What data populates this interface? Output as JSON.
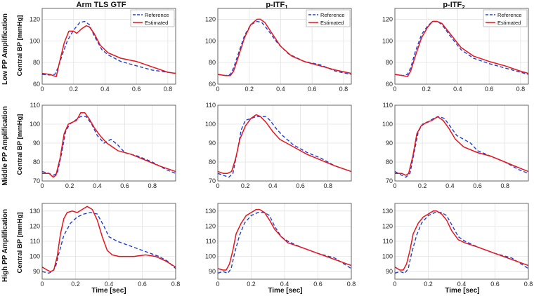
{
  "row_labels": [
    "Low PP Amplification",
    "Middle PP Amplification",
    "High PP Amplification"
  ],
  "col_titles": [
    {
      "main": "Arm TLS GTF",
      "sub": ""
    },
    {
      "main": "p-ITF",
      "sub": "1"
    },
    {
      "main": "p-ITF",
      "sub": "2"
    }
  ],
  "ylabel": "Central BP [mmHg]",
  "xlabel": "Time [sec]",
  "legend": {
    "reference": "Reference",
    "estimated": "Estimated"
  },
  "colors": {
    "reference": "#1f3fd6",
    "estimated": "#e8141b",
    "grid": "#e3e3e3",
    "axis": "#444444"
  },
  "chart_data": [
    {
      "type": "line",
      "row": 0,
      "col": 0,
      "title": "Arm TLS GTF",
      "xlim": [
        0,
        0.85
      ],
      "ylim": [
        60,
        130
      ],
      "xticks": [
        0,
        0.2,
        0.4,
        0.6,
        0.8
      ],
      "yticks": [
        60,
        80,
        100,
        120
      ],
      "series": [
        {
          "name": "Reference",
          "style": "dashed",
          "x": [
            0,
            0.05,
            0.08,
            0.1,
            0.13,
            0.16,
            0.2,
            0.24,
            0.27,
            0.3,
            0.33,
            0.38,
            0.42,
            0.5,
            0.6,
            0.7,
            0.8,
            0.85
          ],
          "y": [
            69,
            68.5,
            69,
            75,
            88,
            100,
            110,
            117,
            118,
            115,
            105,
            92,
            87,
            81,
            77,
            73,
            71,
            70
          ]
        },
        {
          "name": "Estimated",
          "style": "solid",
          "x": [
            0,
            0.05,
            0.07,
            0.09,
            0.11,
            0.14,
            0.17,
            0.2,
            0.22,
            0.25,
            0.28,
            0.3,
            0.33,
            0.37,
            0.42,
            0.5,
            0.6,
            0.7,
            0.8,
            0.85
          ],
          "y": [
            70,
            69,
            68,
            67,
            80,
            98,
            109,
            109,
            107,
            111,
            114,
            113,
            107,
            96,
            89,
            84,
            81,
            76,
            71,
            70
          ]
        }
      ]
    },
    {
      "type": "line",
      "row": 0,
      "col": 1,
      "title": "p-ITF1",
      "xlim": [
        0,
        0.85
      ],
      "ylim": [
        60,
        130
      ],
      "xticks": [
        0,
        0.2,
        0.4,
        0.6,
        0.8
      ],
      "yticks": [
        60,
        80,
        100,
        120
      ],
      "series": [
        {
          "name": "Reference",
          "style": "dashed",
          "x": [
            0,
            0.05,
            0.08,
            0.1,
            0.13,
            0.17,
            0.21,
            0.25,
            0.28,
            0.32,
            0.38,
            0.45,
            0.55,
            0.65,
            0.75,
            0.85
          ],
          "y": [
            69,
            68,
            69,
            75,
            88,
            105,
            115,
            118,
            117,
            110,
            98,
            88,
            81,
            78,
            72,
            69
          ]
        },
        {
          "name": "Estimated",
          "style": "solid",
          "x": [
            0,
            0.05,
            0.08,
            0.1,
            0.13,
            0.17,
            0.21,
            0.25,
            0.27,
            0.3,
            0.34,
            0.4,
            0.47,
            0.55,
            0.65,
            0.75,
            0.85
          ],
          "y": [
            69,
            68,
            68,
            72,
            85,
            103,
            115,
            120,
            120,
            117,
            108,
            95,
            86,
            81,
            77,
            73,
            70
          ]
        }
      ]
    },
    {
      "type": "line",
      "row": 0,
      "col": 2,
      "title": "p-ITF2",
      "xlim": [
        0,
        0.85
      ],
      "ylim": [
        60,
        130
      ],
      "xticks": [
        0,
        0.2,
        0.4,
        0.6,
        0.8
      ],
      "yticks": [
        60,
        80,
        100,
        120
      ],
      "series": [
        {
          "name": "Reference",
          "style": "dashed",
          "x": [
            0,
            0.05,
            0.08,
            0.1,
            0.13,
            0.17,
            0.21,
            0.24,
            0.27,
            0.3,
            0.35,
            0.42,
            0.5,
            0.6,
            0.7,
            0.8,
            0.85
          ],
          "y": [
            69,
            68,
            69,
            75,
            90,
            106,
            114,
            118,
            118,
            115,
            105,
            92,
            84,
            79,
            75,
            71,
            69
          ]
        },
        {
          "name": "Estimated",
          "style": "solid",
          "x": [
            0,
            0.05,
            0.08,
            0.1,
            0.13,
            0.17,
            0.21,
            0.24,
            0.27,
            0.3,
            0.35,
            0.42,
            0.5,
            0.6,
            0.7,
            0.8,
            0.85
          ],
          "y": [
            69,
            68,
            67,
            72,
            86,
            103,
            113,
            118,
            118,
            116,
            107,
            94,
            86,
            81,
            77,
            72,
            70
          ]
        }
      ]
    },
    {
      "type": "line",
      "row": 1,
      "col": 0,
      "title": "Arm TLS GTF",
      "xlim": [
        0,
        0.97
      ],
      "ylim": [
        70,
        110
      ],
      "xticks": [
        0,
        0.2,
        0.4,
        0.6,
        0.8
      ],
      "yticks": [
        70,
        80,
        90,
        100,
        110
      ],
      "series": [
        {
          "name": "Reference",
          "style": "dashed",
          "x": [
            0,
            0.05,
            0.08,
            0.11,
            0.14,
            0.17,
            0.2,
            0.24,
            0.28,
            0.32,
            0.36,
            0.4,
            0.45,
            0.5,
            0.55,
            0.6,
            0.7,
            0.8,
            0.9,
            0.97
          ],
          "y": [
            75,
            74,
            73,
            74,
            84,
            96,
            100,
            102,
            104,
            104,
            100,
            94,
            90,
            92,
            89,
            85,
            83,
            80,
            76,
            74
          ]
        },
        {
          "name": "Estimated",
          "style": "solid",
          "x": [
            0,
            0.05,
            0.08,
            0.1,
            0.13,
            0.16,
            0.19,
            0.22,
            0.25,
            0.28,
            0.31,
            0.34,
            0.38,
            0.42,
            0.47,
            0.55,
            0.65,
            0.75,
            0.85,
            0.97
          ],
          "y": [
            74,
            74,
            72,
            73,
            82,
            95,
            100,
            101,
            102,
            106,
            106,
            103,
            98,
            94,
            90,
            86,
            84,
            81,
            78,
            75
          ]
        }
      ]
    },
    {
      "type": "line",
      "row": 1,
      "col": 1,
      "title": "p-ITF1",
      "xlim": [
        0,
        0.97
      ],
      "ylim": [
        70,
        110
      ],
      "xticks": [
        0,
        0.2,
        0.4,
        0.6,
        0.8
      ],
      "yticks": [
        70,
        80,
        90,
        100,
        110
      ],
      "series": [
        {
          "name": "Reference",
          "style": "dashed",
          "x": [
            0,
            0.04,
            0.08,
            0.11,
            0.14,
            0.17,
            0.2,
            0.24,
            0.28,
            0.32,
            0.35,
            0.38,
            0.42,
            0.47,
            0.55,
            0.65,
            0.75,
            0.85,
            0.97
          ],
          "y": [
            74,
            73,
            72,
            74,
            85,
            97,
            102,
            103,
            104,
            104,
            104,
            102,
            98,
            94,
            89,
            85,
            82,
            78,
            75
          ]
        },
        {
          "name": "Estimated",
          "style": "solid",
          "x": [
            0,
            0.04,
            0.07,
            0.1,
            0.13,
            0.16,
            0.2,
            0.24,
            0.28,
            0.31,
            0.35,
            0.4,
            0.45,
            0.55,
            0.65,
            0.75,
            0.85,
            0.97
          ],
          "y": [
            75,
            74,
            74,
            75,
            82,
            92,
            99,
            103,
            105,
            104,
            101,
            96,
            92,
            88,
            84,
            81,
            78,
            75
          ]
        }
      ]
    },
    {
      "type": "line",
      "row": 1,
      "col": 2,
      "title": "p-ITF2",
      "xlim": [
        0,
        0.97
      ],
      "ylim": [
        70,
        110
      ],
      "xticks": [
        0,
        0.2,
        0.4,
        0.6,
        0.8
      ],
      "yticks": [
        70,
        80,
        90,
        100,
        110
      ],
      "series": [
        {
          "name": "Reference",
          "style": "dashed",
          "x": [
            0,
            0.05,
            0.08,
            0.11,
            0.14,
            0.17,
            0.2,
            0.24,
            0.28,
            0.32,
            0.36,
            0.4,
            0.45,
            0.5,
            0.55,
            0.6,
            0.7,
            0.8,
            0.9,
            0.97
          ],
          "y": [
            75,
            73,
            72,
            74,
            85,
            96,
            100,
            101,
            103,
            104,
            103,
            99,
            94,
            92,
            90,
            86,
            83,
            80,
            76,
            74
          ]
        },
        {
          "name": "Estimated",
          "style": "solid",
          "x": [
            0,
            0.05,
            0.08,
            0.1,
            0.13,
            0.16,
            0.19,
            0.23,
            0.27,
            0.31,
            0.35,
            0.39,
            0.44,
            0.5,
            0.6,
            0.7,
            0.8,
            0.9,
            0.97
          ],
          "y": [
            74,
            74,
            73,
            74,
            83,
            95,
            99,
            101,
            102,
            104,
            102,
            98,
            92,
            88,
            85,
            83,
            80,
            77,
            75
          ]
        }
      ]
    },
    {
      "type": "line",
      "row": 2,
      "col": 0,
      "title": "Arm TLS GTF",
      "xlim": [
        0,
        0.8
      ],
      "ylim": [
        85,
        135
      ],
      "xticks": [
        0,
        0.2,
        0.4,
        0.6,
        0.8
      ],
      "yticks": [
        90,
        100,
        110,
        120,
        130
      ],
      "series": [
        {
          "name": "Reference",
          "style": "dashed",
          "x": [
            0,
            0.04,
            0.06,
            0.08,
            0.1,
            0.13,
            0.17,
            0.21,
            0.25,
            0.29,
            0.33,
            0.37,
            0.4,
            0.45,
            0.5,
            0.55,
            0.6,
            0.65,
            0.7,
            0.75,
            0.8
          ],
          "y": [
            90,
            89,
            90,
            93,
            102,
            114,
            122,
            126,
            128,
            129,
            128,
            120,
            113,
            110,
            108,
            106,
            104,
            102,
            100,
            97,
            92
          ]
        },
        {
          "name": "Estimated",
          "style": "solid",
          "x": [
            0,
            0.03,
            0.05,
            0.07,
            0.09,
            0.11,
            0.13,
            0.15,
            0.18,
            0.21,
            0.24,
            0.27,
            0.3,
            0.33,
            0.36,
            0.39,
            0.42,
            0.46,
            0.5,
            0.55,
            0.62,
            0.68,
            0.74,
            0.8
          ],
          "y": [
            93,
            91,
            90,
            91,
            100,
            115,
            125,
            129,
            130,
            129,
            131,
            133,
            131,
            124,
            113,
            104,
            101,
            100,
            100,
            100,
            101,
            100,
            97,
            93
          ]
        }
      ]
    },
    {
      "type": "line",
      "row": 2,
      "col": 1,
      "title": "p-ITF1",
      "xlim": [
        0,
        0.8
      ],
      "ylim": [
        85,
        135
      ],
      "xticks": [
        0,
        0.2,
        0.4,
        0.6,
        0.8
      ],
      "yticks": [
        90,
        100,
        110,
        120,
        130
      ],
      "series": [
        {
          "name": "Reference",
          "style": "dashed",
          "x": [
            0,
            0.03,
            0.06,
            0.08,
            0.1,
            0.13,
            0.16,
            0.2,
            0.24,
            0.28,
            0.31,
            0.34,
            0.38,
            0.42,
            0.5,
            0.6,
            0.7,
            0.8
          ],
          "y": [
            89,
            90,
            89,
            92,
            102,
            114,
            122,
            127,
            129,
            129,
            127,
            120,
            113,
            110,
            106,
            102,
            99,
            92
          ]
        },
        {
          "name": "Estimated",
          "style": "solid",
          "x": [
            0,
            0.03,
            0.05,
            0.07,
            0.09,
            0.11,
            0.14,
            0.17,
            0.2,
            0.23,
            0.25,
            0.28,
            0.31,
            0.34,
            0.38,
            0.42,
            0.5,
            0.6,
            0.7,
            0.8
          ],
          "y": [
            92,
            91,
            91,
            95,
            104,
            115,
            122,
            127,
            129,
            131,
            131,
            129,
            124,
            118,
            113,
            109,
            106,
            102,
            98,
            94
          ]
        }
      ]
    },
    {
      "type": "line",
      "row": 2,
      "col": 2,
      "title": "p-ITF2",
      "xlim": [
        0,
        0.8
      ],
      "ylim": [
        85,
        135
      ],
      "xticks": [
        0,
        0.2,
        0.4,
        0.6,
        0.8
      ],
      "yticks": [
        90,
        100,
        110,
        120,
        130
      ],
      "series": [
        {
          "name": "Reference",
          "style": "dashed",
          "x": [
            0,
            0.03,
            0.06,
            0.08,
            0.1,
            0.13,
            0.16,
            0.2,
            0.24,
            0.28,
            0.31,
            0.34,
            0.38,
            0.42,
            0.5,
            0.6,
            0.7,
            0.8
          ],
          "y": [
            89,
            90,
            89,
            92,
            102,
            114,
            122,
            127,
            129,
            129,
            127,
            121,
            113,
            110,
            106,
            102,
            99,
            92
          ]
        },
        {
          "name": "Estimated",
          "style": "solid",
          "x": [
            0,
            0.03,
            0.05,
            0.07,
            0.09,
            0.11,
            0.14,
            0.17,
            0.2,
            0.23,
            0.25,
            0.28,
            0.31,
            0.34,
            0.38,
            0.42,
            0.5,
            0.6,
            0.7,
            0.8
          ],
          "y": [
            93,
            91,
            91,
            95,
            104,
            115,
            122,
            126,
            128,
            130,
            130,
            128,
            124,
            117,
            111,
            109,
            106,
            102,
            98,
            94
          ]
        }
      ]
    }
  ]
}
